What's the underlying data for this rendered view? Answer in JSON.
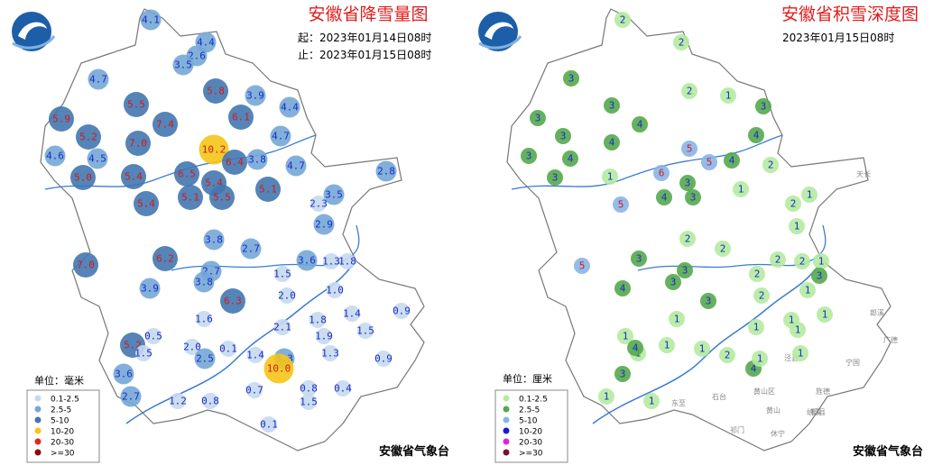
{
  "panels": [
    {
      "title": "安徽省降雪量图",
      "start": "起：2023年01月14日08时",
      "end": "止：2023年01月15日08时",
      "unit": "单位：毫米",
      "footer": "安徽省气象台",
      "legend": [
        {
          "label": "0.1-2.5",
          "color": "#c5d9ee"
        },
        {
          "label": "2.5-5",
          "color": "#74a7d6"
        },
        {
          "label": "5-10",
          "color": "#4277b0"
        },
        {
          "label": "10-20",
          "color": "#f5c518"
        },
        {
          "label": "20-30",
          "color": "#e0271e"
        },
        {
          "label": ">=30",
          "color": "#8b0a0a"
        }
      ],
      "stations": [
        "4.1",
        "4.4",
        "2.6",
        "3.5",
        "4.7",
        "5.8",
        "3.9",
        "5.5",
        "4.4",
        "7.4",
        "6.1",
        "5.9",
        "5.2",
        "4.7",
        "7.0",
        "10.2",
        "6.4",
        "3.8",
        "4.6",
        "4.5",
        "4.7",
        "2.8",
        "5.0",
        "5.4",
        "6.5",
        "5.4",
        "5.1",
        "3.5",
        "5.1",
        "5.5",
        "5.4",
        "2.3",
        "2.9",
        "3.8",
        "2.7",
        "6.2",
        "7.0",
        "3.6",
        "1.3",
        "1.8",
        "2.7",
        "1.5",
        "3.8",
        "1.0",
        "3.9",
        "6.3",
        "2.0",
        "1.6",
        "0.9",
        "1.4",
        "1.8",
        "2.1",
        "1.5",
        "0.5",
        "1.9",
        "5.2",
        "2.0",
        "1.5",
        "0.1",
        "1.3",
        "1.4",
        "2.5",
        "3.3",
        "0.9",
        "10.0",
        "3.6",
        "0.7",
        "0.8",
        "0.4",
        "2.7",
        "1.2",
        "0.8",
        "1.5",
        "0.1"
      ]
    },
    {
      "title": "安徽省积雪深度图",
      "start": "2023年01月15日08时",
      "unit": "单位：厘米",
      "footer": "安徽省气象台",
      "legend": [
        {
          "label": "0.1-2.5",
          "color": "#b4eba0"
        },
        {
          "label": "2.5-5",
          "color": "#54a84e"
        },
        {
          "label": "5-10",
          "color": "#8ab4e8"
        },
        {
          "label": "10-20",
          "color": "#1a1ad0"
        },
        {
          "label": "20-30",
          "color": "#e020e0"
        },
        {
          "label": ">=30",
          "color": "#7a1030"
        }
      ],
      "stations": [
        "2",
        "2",
        "3",
        "2",
        "1",
        "3",
        "3",
        "3",
        "4",
        "3",
        "4",
        "4",
        "5",
        "3",
        "4",
        "3",
        "1",
        "6",
        "5",
        "4",
        "2",
        "3",
        "1",
        "4",
        "3",
        "5",
        "1",
        "2",
        "1",
        "2",
        "2",
        "3",
        "5",
        "2",
        "2",
        "1",
        "3",
        "2",
        "3",
        "3",
        "1",
        "4",
        "3",
        "2",
        "1",
        "1",
        "1",
        "1",
        "1",
        "1",
        "1",
        "4",
        "1",
        "1",
        "1",
        "2",
        "4",
        "1",
        "3",
        "1",
        "1"
      ],
      "place_names": [
        "天长",
        "郎溪",
        "广德",
        "宁国",
        "泾县",
        "黄山区",
        "旌德",
        "绩溪",
        "黄山",
        "祁门",
        "休宁",
        "歙县",
        "石台",
        "东至"
      ]
    }
  ]
}
